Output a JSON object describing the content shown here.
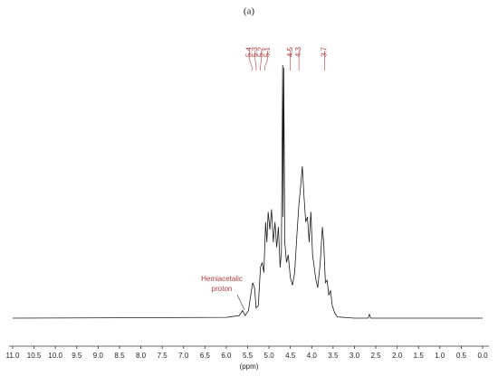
{
  "chart_data": {
    "type": "line",
    "title": "(a)",
    "x_label": "(ppm)",
    "x": [
      11.0,
      6.0,
      5.7,
      5.62,
      5.56,
      5.48,
      5.42,
      5.38,
      5.34,
      5.3,
      5.25,
      5.2,
      5.16,
      5.12,
      5.08,
      5.05,
      5.02,
      4.98,
      4.94,
      4.9,
      4.86,
      4.82,
      4.78,
      4.74,
      4.71,
      4.68,
      4.67,
      4.655,
      4.63,
      4.59,
      4.55,
      4.5,
      4.45,
      4.4,
      4.35,
      4.3,
      4.26,
      4.22,
      4.18,
      4.14,
      4.1,
      4.06,
      4.02,
      3.98,
      3.94,
      3.9,
      3.86,
      3.8,
      3.75,
      3.72,
      3.68,
      3.64,
      3.6,
      3.56,
      3.52,
      3.46,
      3.4,
      3.0,
      2.68,
      2.65,
      2.62,
      0.0
    ],
    "values": [
      0,
      0.3,
      1,
      3,
      1,
      3,
      10,
      14,
      12,
      4,
      5,
      20,
      22,
      18,
      38,
      30,
      42,
      35,
      43,
      30,
      38,
      28,
      36,
      20,
      26,
      100,
      40,
      99,
      30,
      22,
      25,
      16,
      13,
      18,
      32,
      45,
      52,
      60,
      48,
      38,
      40,
      30,
      42,
      25,
      20,
      15,
      12,
      22,
      36,
      30,
      14,
      15,
      9,
      11,
      5,
      2,
      0.5,
      0,
      0,
      1.5,
      0,
      0
    ],
    "color": "#1a1a1a",
    "xlim": [
      11.0,
      0.0
    ],
    "ylim": [
      0,
      100
    ],
    "xticks": [
      {
        "value": 11,
        "label": "11.0"
      },
      10.5,
      {
        "value": 10,
        "label": "10.0"
      },
      9.5,
      {
        "value": 9,
        "label": "9.0"
      },
      8.5,
      {
        "value": 8,
        "label": "8.0"
      },
      7.5,
      {
        "value": 7,
        "label": "7.0"
      },
      6.5,
      {
        "value": 6,
        "label": "6.0"
      },
      5.5,
      {
        "value": 5,
        "label": "5.0"
      },
      4.5,
      {
        "value": 4,
        "label": "4.0"
      },
      3.5,
      {
        "value": 3,
        "label": "3.0"
      },
      2.5,
      {
        "value": 2,
        "label": "2.0"
      },
      1.5,
      {
        "value": 1,
        "label": "1.0"
      },
      0.5,
      {
        "value": 0,
        "label": "0.0"
      }
    ],
    "peak_labels": [
      5.4,
      5.3,
      5.2,
      5.1,
      4.5,
      4.3,
      3.7
    ],
    "peak_label_color": "#b03a3a",
    "annotation": [
      "Hemiacetalic",
      "proton"
    ]
  }
}
